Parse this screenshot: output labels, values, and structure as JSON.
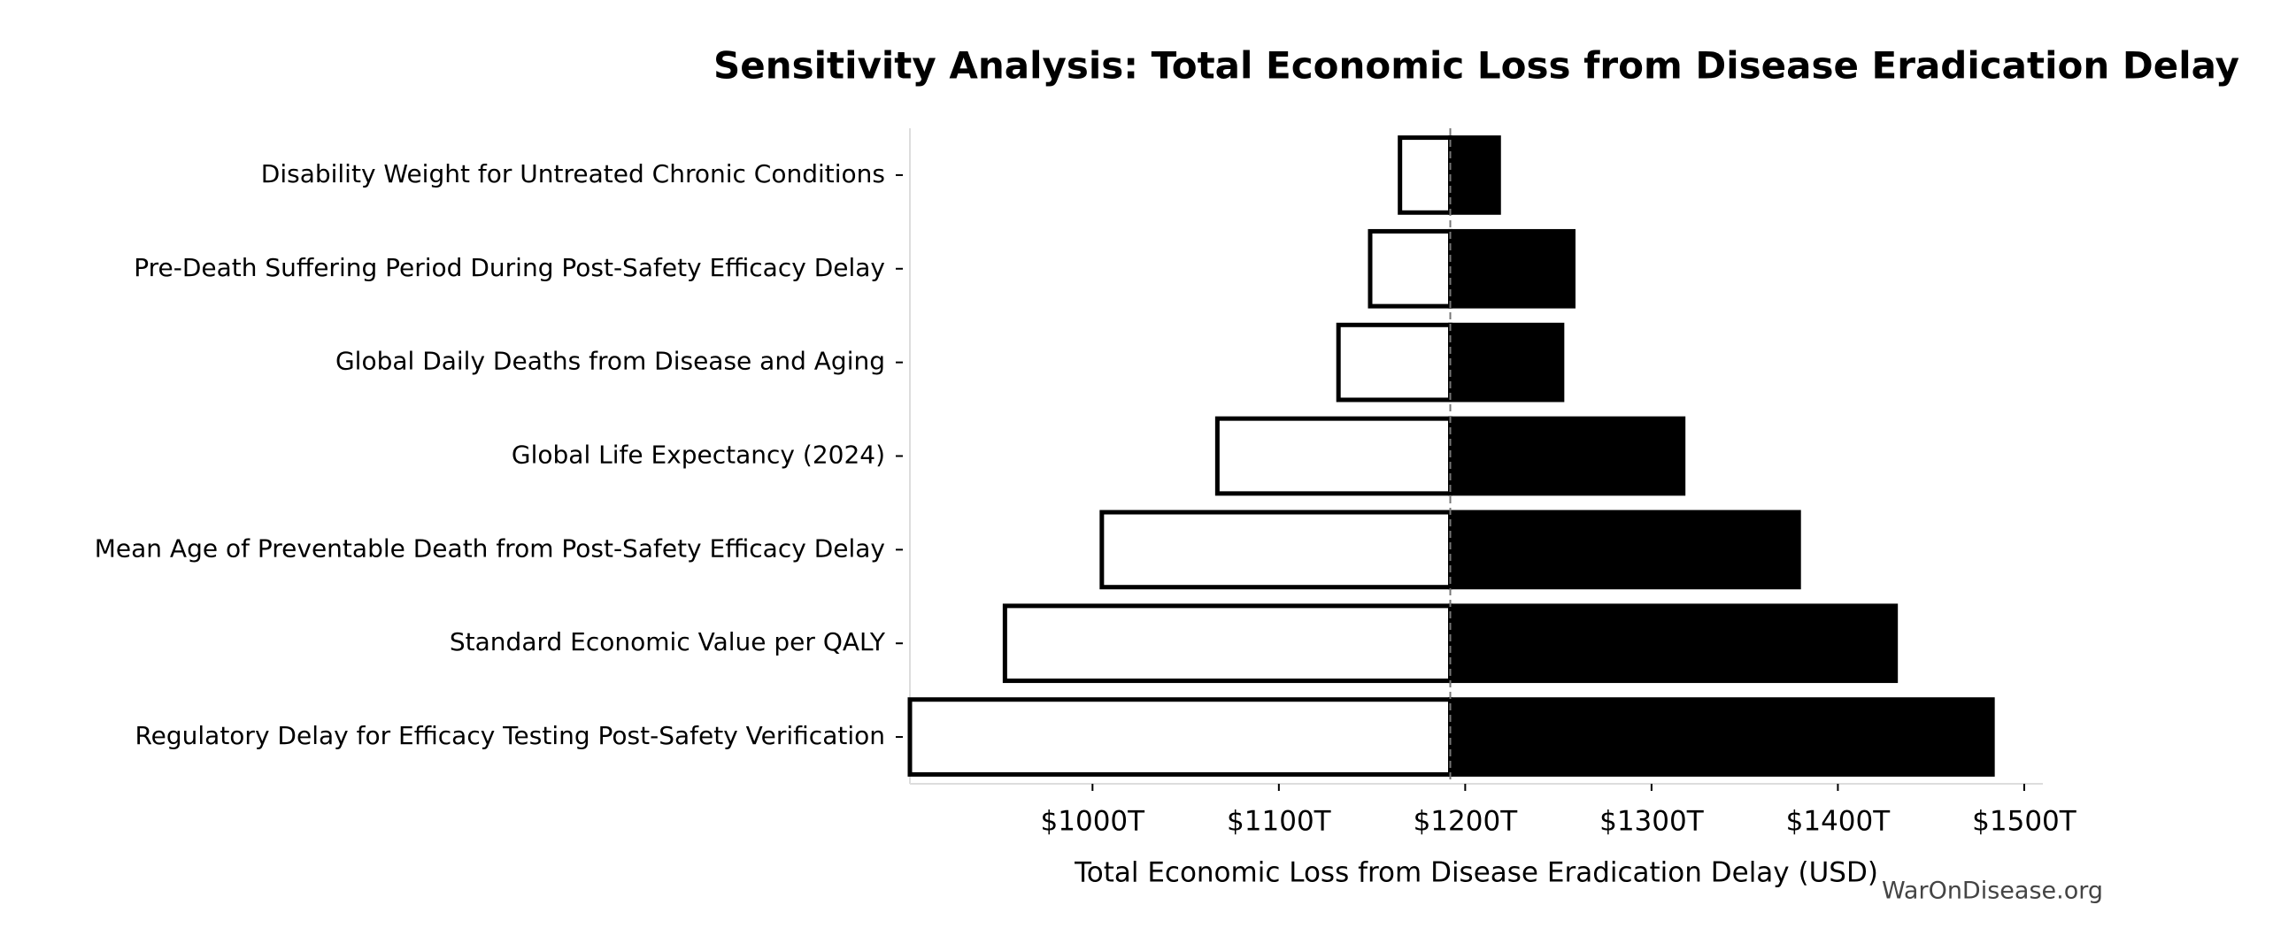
{
  "chart_data": {
    "type": "tornado",
    "title": "Sensitivity Analysis: Total Economic Loss from Disease Eradication Delay",
    "x_label": "Total Economic Loss from Disease Eradication Delay (USD)",
    "watermark": "WarOnDisease.org",
    "categories": [
      "Disability Weight for Untreated Chronic Conditions",
      "Pre-Death Suffering Period During Post-Safety Efficacy Delay",
      "Global Daily Deaths from Disease and Aging",
      "Global Life Expectancy (2024)",
      "Mean Age of Preventable Death from Post-Safety Efficacy Delay",
      "Standard Economic Value per QALY",
      "Regulatory Delay for Efficacy Testing Post-Safety Verification"
    ],
    "low_values": [
      1165,
      1149,
      1132,
      1067,
      1005,
      953,
      902
    ],
    "high_values": [
      1218,
      1258,
      1252,
      1317,
      1379,
      1431,
      1483
    ],
    "baseline": 1192,
    "low_color": "#ffffff",
    "high_color": "#000000",
    "edge_color": "#000000",
    "xlim": [
      902,
      1510
    ],
    "xticks": [
      {
        "value": 1000,
        "label": "$1000T"
      },
      {
        "value": 1100,
        "label": "$1100T"
      },
      {
        "value": 1200,
        "label": "$1200T"
      },
      {
        "value": 1300,
        "label": "$1300T"
      },
      {
        "value": 1400,
        "label": "$1400T"
      },
      {
        "value": 1500,
        "label": "$1500T"
      }
    ]
  }
}
